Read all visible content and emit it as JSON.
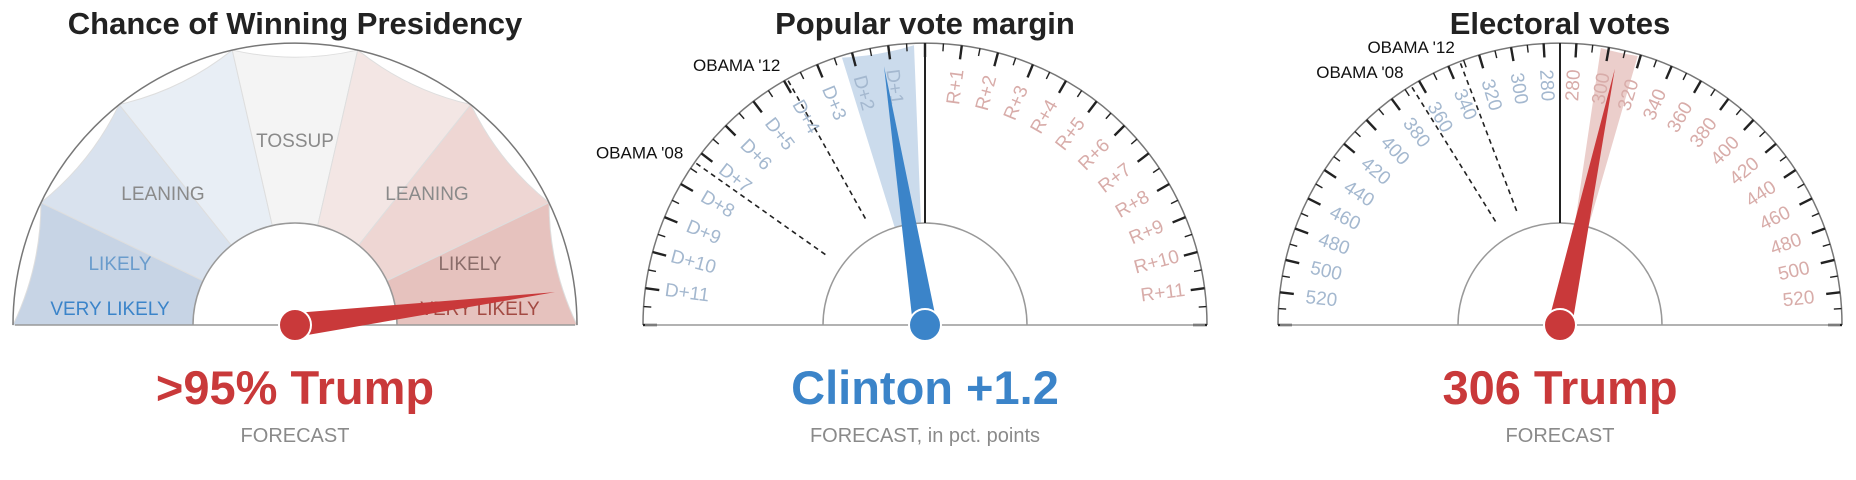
{
  "colors": {
    "democrat": "#3b84c9",
    "republican": "#c9393a",
    "title": "#222222",
    "subtitle": "#8a8a8a",
    "tick_blue": "#a4b8cf",
    "tick_red": "#d8aca9"
  },
  "chart_data": [
    {
      "type": "gauge",
      "title": "Chance of Winning Presidency",
      "zones": [
        "VERY LIKELY",
        "LIKELY",
        "LEANING",
        "TOSSUP",
        "LEANING",
        "LIKELY",
        "VERY LIKELY"
      ],
      "value": 0.96,
      "result_label": ">95% Trump",
      "subtitle": "FORECAST",
      "result_color": "#c9393a"
    },
    {
      "type": "gauge",
      "title": "Popular vote margin",
      "left_labels": [
        "D+1",
        "D+2",
        "D+3",
        "D+4",
        "D+5",
        "D+6",
        "D+7",
        "D+8",
        "D+9",
        "D+10",
        "D+11"
      ],
      "right_labels": [
        "R+1",
        "R+2",
        "R+3",
        "R+4",
        "R+5",
        "R+6",
        "R+7",
        "R+8",
        "R+9",
        "R+10",
        "R+11"
      ],
      "range": [
        -12,
        12
      ],
      "value": -1.2,
      "uncertainty": [
        -2.3,
        -0.3
      ],
      "references": [
        {
          "label": "OBAMA '12",
          "value": -3.9
        },
        {
          "label": "OBAMA '08",
          "value": -7.3
        }
      ],
      "result_label": "Clinton +1.2",
      "subtitle": "FORECAST, in pct. points",
      "result_color": "#3b84c9"
    },
    {
      "type": "gauge",
      "title": "Electoral votes",
      "left_labels": [
        "280",
        "300",
        "320",
        "340",
        "360",
        "380",
        "400",
        "420",
        "440",
        "460",
        "480",
        "500",
        "520"
      ],
      "right_labels": [
        "280",
        "300",
        "320",
        "340",
        "360",
        "380",
        "400",
        "420",
        "440",
        "460",
        "480",
        "500",
        "520"
      ],
      "center": 270,
      "max": 538,
      "value": 306,
      "side": "right",
      "uncertainty": [
        295,
        318
      ],
      "references": [
        {
          "label": "OBAMA '12",
          "value": 332,
          "side": "left"
        },
        {
          "label": "OBAMA '08",
          "value": 365,
          "side": "left"
        }
      ],
      "result_label": "306 Trump",
      "subtitle": "FORECAST",
      "result_color": "#c9393a"
    }
  ]
}
